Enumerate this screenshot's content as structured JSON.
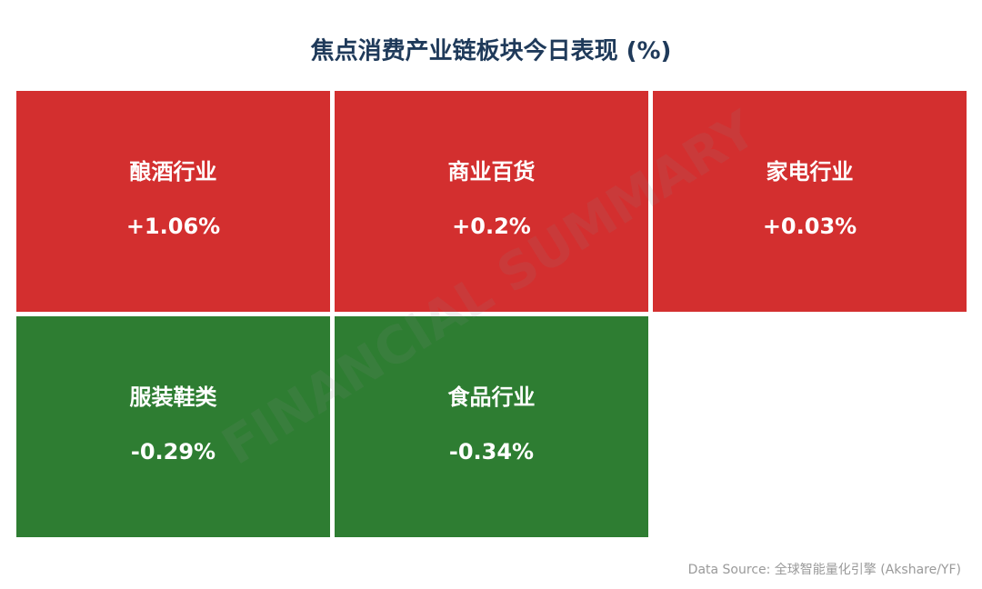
{
  "chart_data": {
    "type": "tiles",
    "title": "焦点消费产业链板块今日表现 (%)",
    "categories": [
      "酿酒行业",
      "商业百货",
      "家电行业",
      "服装鞋类",
      "食品行业"
    ],
    "values": [
      1.06,
      0.2,
      0.03,
      -0.29,
      -0.34
    ],
    "value_labels": [
      "+1.06%",
      "+0.2%",
      "+0.03%",
      "-0.29%",
      "-0.34%"
    ],
    "positive_color": "#d32f2f",
    "negative_color": "#2e7d32",
    "watermark": "FINANCIAL SUMMARY",
    "source": "Data Source: 全球智能量化引擎 (Akshare/YF)"
  }
}
